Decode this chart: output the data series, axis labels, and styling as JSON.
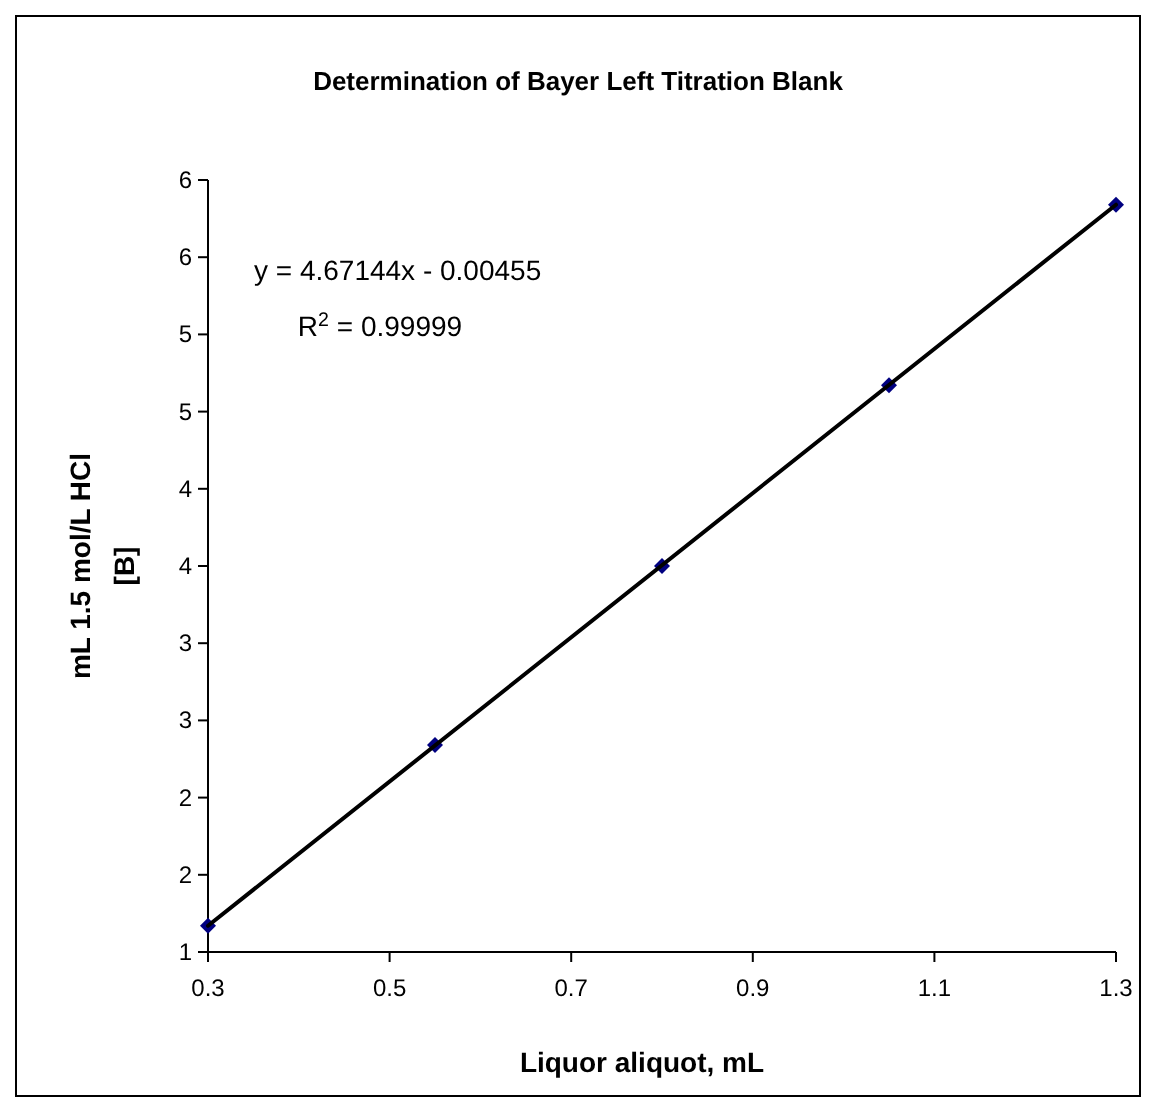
{
  "chart_data": {
    "type": "scatter",
    "title": "Determination of Bayer Left Titration Blank",
    "xlabel": "Liquor aliquot, mL",
    "ylabel": "mL 1.5 mol/L HCl [B]",
    "annotations": [
      "y = 4.67144x - 0.00455",
      "R$^{2}$ = 0.99999"
    ],
    "x": [
      0.3,
      0.55,
      0.8,
      1.05,
      1.3
    ],
    "series": [
      {
        "color": "#000080",
        "marker": "diamond",
        "values": [
          1.4,
          2.57,
          3.73,
          4.9,
          6.07
        ]
      },
      {
        "type": "line",
        "color": "#000000",
        "x": [
          0.3,
          1.3
        ],
        "values": [
          1.4,
          6.07
        ],
        "marker": "none",
        "line_style": "solid"
      }
    ],
    "xlim": [
      0.3,
      1.3
    ],
    "xticks": [
      0.3,
      0.5,
      0.7,
      0.9,
      1.1,
      1.3
    ],
    "ylim": [
      1.23,
      6.23
    ],
    "yticks": [
      {
        "value": 1.23,
        "label": "1"
      },
      {
        "value": 1.73,
        "label": "2"
      },
      {
        "value": 2.23,
        "label": "2"
      },
      {
        "value": 2.73,
        "label": "3"
      },
      {
        "value": 3.23,
        "label": "3"
      },
      {
        "value": 3.73,
        "label": "4"
      },
      {
        "value": 4.23,
        "label": "4"
      },
      {
        "value": 4.73,
        "label": "5"
      },
      {
        "value": 5.23,
        "label": "5"
      },
      {
        "value": 5.73,
        "label": "6"
      },
      {
        "value": 6.23,
        "label": "6"
      }
    ],
    "grid": false
  }
}
